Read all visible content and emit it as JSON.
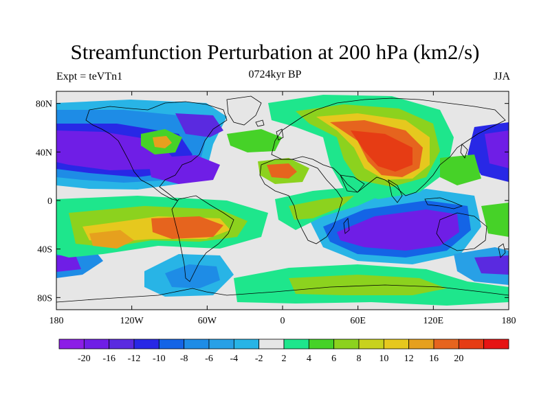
{
  "title": "Streamfunction Perturbation at 200 hPa (km2/s)",
  "subtitle": "0724kyr BP",
  "left_string": "Expt = teVTn1",
  "right_string": "JJA",
  "map": {
    "projection": "cylindrical-equidistant",
    "lon_range": [
      -180,
      180
    ],
    "lat_range": [
      -90,
      90
    ],
    "coastlines": true,
    "x_ticks": [
      {
        "lon": -180,
        "label": "180"
      },
      {
        "lon": -120,
        "label": "120W"
      },
      {
        "lon": -60,
        "label": "60W"
      },
      {
        "lon": 0,
        "label": "0"
      },
      {
        "lon": 60,
        "label": "60E"
      },
      {
        "lon": 120,
        "label": "120E"
      },
      {
        "lon": 180,
        "label": "180"
      }
    ],
    "y_ticks": [
      {
        "lat": 80,
        "label": "80N"
      },
      {
        "lat": 40,
        "label": "40N"
      },
      {
        "lat": 0,
        "label": "0"
      },
      {
        "lat": -40,
        "label": "40S"
      },
      {
        "lat": -80,
        "label": "80S"
      }
    ]
  },
  "colorbar": {
    "colors": [
      "#8c1ee6",
      "#6f1ee6",
      "#5a2ae0",
      "#2828e6",
      "#1464e6",
      "#1e8ce6",
      "#28a0e6",
      "#28b4e6",
      "#e6e6e6",
      "#1ee68c",
      "#46d228",
      "#8cd21e",
      "#c8d21e",
      "#e6c81e",
      "#e6a01e",
      "#e6641e",
      "#e63c14",
      "#e61414"
    ],
    "labels": [
      "-20",
      "-16",
      "-12",
      "-10",
      "-8",
      "-6",
      "-4",
      "-2",
      "2",
      "4",
      "6",
      "8",
      "10",
      "12",
      "16",
      "20"
    ]
  }
}
